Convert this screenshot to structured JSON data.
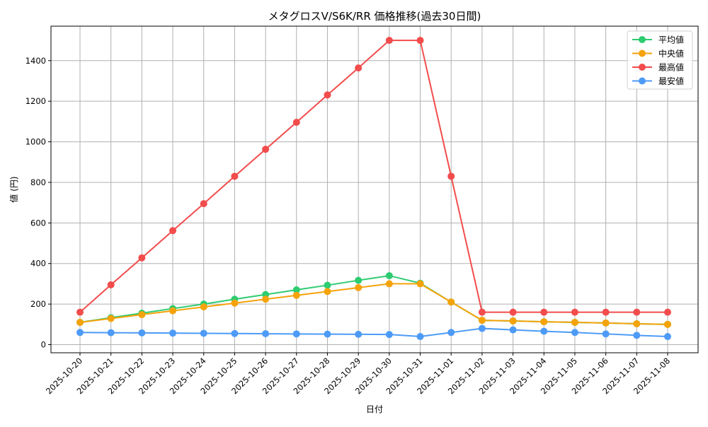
{
  "chart_data": {
    "type": "line",
    "title": "メタグロスV/S6K/RR 価格推移(過去30日間)",
    "xlabel": "日付",
    "ylabel": "値 (円)",
    "ylim": [
      -40,
      1570
    ],
    "yticks": [
      0,
      200,
      400,
      600,
      800,
      1000,
      1200,
      1400
    ],
    "grid": true,
    "legend_position": "upper right",
    "x": [
      "2025-10-20",
      "2025-10-21",
      "2025-10-22",
      "2025-10-23",
      "2025-10-24",
      "2025-10-25",
      "2025-10-26",
      "2025-10-27",
      "2025-10-28",
      "2025-10-29",
      "2025-10-30",
      "2025-10-31",
      "2025-11-01",
      "2025-11-02",
      "2025-11-03",
      "2025-11-04",
      "2025-11-05",
      "2025-11-06",
      "2025-11-07",
      "2025-11-08"
    ],
    "series": [
      {
        "name": "平均値",
        "color": "#2ecc71",
        "values": [
          110,
          133,
          155,
          178,
          200,
          224,
          247,
          270,
          293,
          317,
          340,
          303,
          210,
          120,
          117,
          113,
          110,
          107,
          103,
          100
        ]
      },
      {
        "name": "中央値",
        "color": "#f5a30a",
        "values": [
          110,
          129,
          148,
          167,
          186,
          205,
          224,
          243,
          262,
          281,
          300,
          300,
          210,
          120,
          117,
          113,
          110,
          107,
          103,
          100
        ]
      },
      {
        "name": "最高値",
        "color": "#f24c4c",
        "values": [
          160,
          295,
          428,
          562,
          695,
          830,
          963,
          1096,
          1231,
          1364,
          1500,
          1500,
          830,
          160,
          160,
          160,
          160,
          160,
          160,
          160
        ]
      },
      {
        "name": "最安値",
        "color": "#4d9bf7",
        "values": [
          60,
          59,
          58,
          57,
          56,
          55,
          54,
          53,
          52,
          51,
          50,
          40,
          60,
          80,
          73,
          66,
          60,
          53,
          46,
          40
        ]
      }
    ]
  }
}
